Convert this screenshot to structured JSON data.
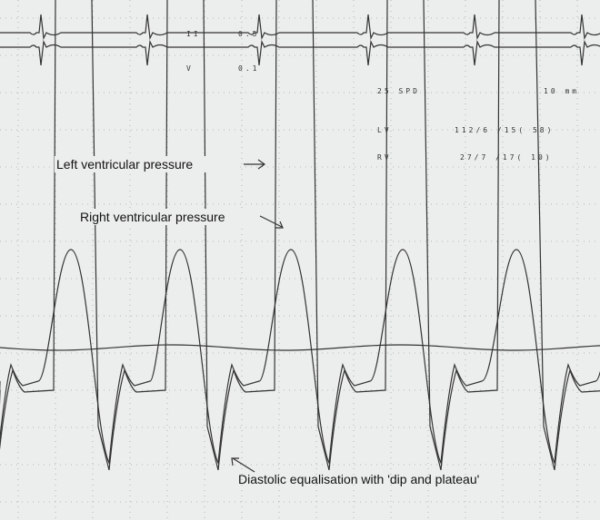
{
  "annotations": {
    "left": "Left ventricular pressure",
    "right": "Right ventricular pressure",
    "diastolic": "Diastolic equalisation with 'dip and plateau'"
  },
  "monitor_text": {
    "lead1": "II",
    "gain1": "0.5",
    "lead2": "V",
    "gain2": "0.1",
    "speed": "25 SPD",
    "scale": "10 mm",
    "lv_label": "LV",
    "lv_values": "112/6 /15( 58)",
    "rv_label": "RV",
    "rv_values": "27/7 /17( 10)"
  }
}
